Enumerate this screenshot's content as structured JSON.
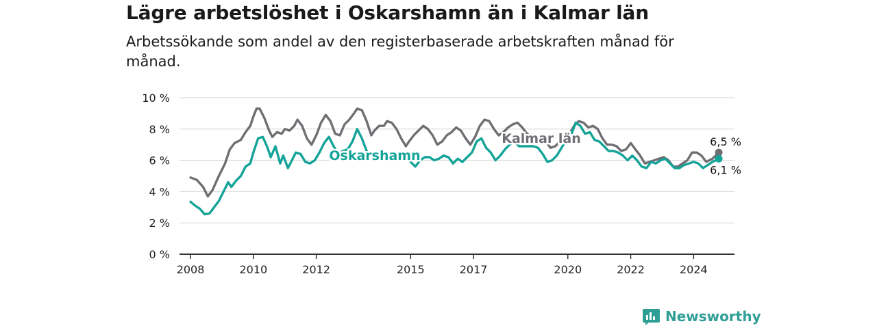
{
  "header": {
    "title": "Lägre arbetslöshet i Oskarshamn än i Kalmar län",
    "subtitle": "Arbetssökande som andel av den registerbaserade arbetskraften månad för månad."
  },
  "branding": {
    "logo_text": "Newsworthy",
    "logo_icon": "newsworthy-chart-icon"
  },
  "colors": {
    "kalmar": "#6e6e73",
    "oskarshamn": "#14a398",
    "grid": "#dddddd",
    "axis": "#333333",
    "logo": "#2f9e95"
  },
  "chart_data": {
    "type": "line",
    "title": "Lägre arbetslöshet i Oskarshamn än i Kalmar län",
    "subtitle": "Arbetssökande som andel av den registerbaserade arbetskraften månad för månad.",
    "ylim": [
      0,
      10
    ],
    "y_ticks": [
      0,
      2,
      4,
      6,
      8,
      10
    ],
    "y_tick_labels": [
      "0 %",
      "2 %",
      "4 %",
      "6 %",
      "8 %",
      "10 %"
    ],
    "x_tick_labels": [
      "2008",
      "2010",
      "2012",
      "2015",
      "2017",
      "2020",
      "2022",
      "2024"
    ],
    "grid": true,
    "legend": "inline labels",
    "series": [
      {
        "name": "Kalmar län",
        "end_label": "6,5 %",
        "points": [
          [
            2008.0,
            4.9
          ],
          [
            2008.2,
            4.75
          ],
          [
            2008.4,
            4.3
          ],
          [
            2008.55,
            3.7
          ],
          [
            2008.7,
            4.1
          ],
          [
            2008.9,
            5.0
          ],
          [
            2009.1,
            5.8
          ],
          [
            2009.25,
            6.7
          ],
          [
            2009.4,
            7.1
          ],
          [
            2009.6,
            7.3
          ],
          [
            2009.75,
            7.8
          ],
          [
            2009.9,
            8.2
          ],
          [
            2010.0,
            8.8
          ],
          [
            2010.1,
            9.3
          ],
          [
            2010.2,
            9.3
          ],
          [
            2010.35,
            8.7
          ],
          [
            2010.5,
            7.9
          ],
          [
            2010.6,
            7.5
          ],
          [
            2010.75,
            7.8
          ],
          [
            2010.9,
            7.7
          ],
          [
            2011.0,
            8.0
          ],
          [
            2011.15,
            7.9
          ],
          [
            2011.3,
            8.2
          ],
          [
            2011.4,
            8.6
          ],
          [
            2011.55,
            8.2
          ],
          [
            2011.7,
            7.4
          ],
          [
            2011.85,
            7.0
          ],
          [
            2012.0,
            7.6
          ],
          [
            2012.15,
            8.4
          ],
          [
            2012.3,
            8.9
          ],
          [
            2012.45,
            8.5
          ],
          [
            2012.6,
            7.7
          ],
          [
            2012.75,
            7.6
          ],
          [
            2012.9,
            8.3
          ],
          [
            2013.05,
            8.6
          ],
          [
            2013.2,
            9.0
          ],
          [
            2013.3,
            9.3
          ],
          [
            2013.45,
            9.2
          ],
          [
            2013.6,
            8.5
          ],
          [
            2013.75,
            7.6
          ],
          [
            2013.85,
            7.9
          ],
          [
            2014.0,
            8.2
          ],
          [
            2014.15,
            8.2
          ],
          [
            2014.25,
            8.5
          ],
          [
            2014.4,
            8.4
          ],
          [
            2014.55,
            8.0
          ],
          [
            2014.7,
            7.4
          ],
          [
            2014.85,
            6.9
          ],
          [
            2014.95,
            7.2
          ],
          [
            2015.1,
            7.6
          ],
          [
            2015.25,
            7.9
          ],
          [
            2015.4,
            8.2
          ],
          [
            2015.55,
            8.0
          ],
          [
            2015.7,
            7.6
          ],
          [
            2015.85,
            7.0
          ],
          [
            2016.0,
            7.2
          ],
          [
            2016.15,
            7.6
          ],
          [
            2016.3,
            7.8
          ],
          [
            2016.45,
            8.1
          ],
          [
            2016.6,
            7.9
          ],
          [
            2016.75,
            7.4
          ],
          [
            2016.9,
            7.0
          ],
          [
            2017.05,
            7.5
          ],
          [
            2017.2,
            8.2
          ],
          [
            2017.35,
            8.6
          ],
          [
            2017.5,
            8.5
          ],
          [
            2017.65,
            8.0
          ],
          [
            2017.8,
            7.6
          ],
          [
            2017.95,
            7.8
          ],
          [
            2018.1,
            8.1
          ],
          [
            2018.25,
            8.3
          ],
          [
            2018.4,
            8.4
          ],
          [
            2018.55,
            8.1
          ],
          [
            2018.7,
            7.7
          ],
          [
            2018.85,
            7.5
          ],
          [
            2019.0,
            7.3
          ],
          [
            2019.15,
            7.2
          ],
          [
            2019.3,
            7.2
          ],
          [
            2019.45,
            6.8
          ],
          [
            2019.6,
            6.9
          ],
          [
            2019.75,
            7.2
          ],
          [
            2019.9,
            7.4
          ],
          [
            2020.05,
            7.7
          ],
          [
            2020.2,
            8.2
          ],
          [
            2020.35,
            8.5
          ],
          [
            2020.5,
            8.4
          ],
          [
            2020.65,
            8.1
          ],
          [
            2020.8,
            8.2
          ],
          [
            2020.95,
            8.0
          ],
          [
            2021.1,
            7.4
          ],
          [
            2021.25,
            7.0
          ],
          [
            2021.4,
            7.0
          ],
          [
            2021.55,
            6.9
          ],
          [
            2021.7,
            6.6
          ],
          [
            2021.85,
            6.7
          ],
          [
            2022.0,
            7.1
          ],
          [
            2022.15,
            6.7
          ],
          [
            2022.3,
            6.3
          ],
          [
            2022.45,
            5.8
          ],
          [
            2022.6,
            5.9
          ],
          [
            2022.75,
            6.0
          ],
          [
            2022.9,
            6.1
          ],
          [
            2023.05,
            6.2
          ],
          [
            2023.2,
            6.0
          ],
          [
            2023.35,
            5.6
          ],
          [
            2023.5,
            5.6
          ],
          [
            2023.65,
            5.8
          ],
          [
            2023.8,
            6.0
          ],
          [
            2023.95,
            6.5
          ],
          [
            2024.1,
            6.5
          ],
          [
            2024.25,
            6.3
          ],
          [
            2024.4,
            5.9
          ],
          [
            2024.6,
            6.1
          ],
          [
            2024.8,
            6.5
          ]
        ]
      },
      {
        "name": "Oskarshamn",
        "end_label": "6,1 %",
        "points": [
          [
            2008.0,
            3.35
          ],
          [
            2008.15,
            3.1
          ],
          [
            2008.3,
            2.9
          ],
          [
            2008.45,
            2.55
          ],
          [
            2008.6,
            2.6
          ],
          [
            2008.75,
            3.0
          ],
          [
            2008.9,
            3.4
          ],
          [
            2009.05,
            4.0
          ],
          [
            2009.2,
            4.6
          ],
          [
            2009.3,
            4.3
          ],
          [
            2009.45,
            4.7
          ],
          [
            2009.6,
            5.0
          ],
          [
            2009.75,
            5.6
          ],
          [
            2009.9,
            5.8
          ],
          [
            2010.0,
            6.5
          ],
          [
            2010.15,
            7.4
          ],
          [
            2010.3,
            7.5
          ],
          [
            2010.45,
            6.8
          ],
          [
            2010.55,
            6.2
          ],
          [
            2010.7,
            6.9
          ],
          [
            2010.85,
            5.8
          ],
          [
            2010.95,
            6.3
          ],
          [
            2011.1,
            5.5
          ],
          [
            2011.25,
            6.1
          ],
          [
            2011.35,
            6.5
          ],
          [
            2011.5,
            6.4
          ],
          [
            2011.65,
            5.9
          ],
          [
            2011.8,
            5.8
          ],
          [
            2011.95,
            6.0
          ],
          [
            2012.1,
            6.5
          ],
          [
            2012.25,
            7.1
          ],
          [
            2012.4,
            7.5
          ],
          [
            2012.55,
            6.9
          ],
          [
            2012.7,
            6.4
          ],
          [
            2012.85,
            6.6
          ],
          [
            2013.0,
            6.7
          ],
          [
            2013.15,
            7.2
          ],
          [
            2013.3,
            8.0
          ],
          [
            2013.45,
            7.4
          ],
          [
            2013.6,
            6.6
          ],
          [
            2015.0,
            5.9
          ],
          [
            2015.15,
            5.6
          ],
          [
            2015.3,
            6.0
          ],
          [
            2015.45,
            6.2
          ],
          [
            2015.6,
            6.2
          ],
          [
            2015.75,
            6.0
          ],
          [
            2015.9,
            6.1
          ],
          [
            2016.05,
            6.3
          ],
          [
            2016.2,
            6.2
          ],
          [
            2016.35,
            5.8
          ],
          [
            2016.5,
            6.1
          ],
          [
            2016.65,
            5.9
          ],
          [
            2016.8,
            6.2
          ],
          [
            2016.95,
            6.5
          ],
          [
            2017.1,
            7.2
          ],
          [
            2017.25,
            7.4
          ],
          [
            2017.4,
            6.8
          ],
          [
            2017.55,
            6.5
          ],
          [
            2017.7,
            6.0
          ],
          [
            2017.85,
            6.3
          ],
          [
            2018.0,
            6.7
          ],
          [
            2018.15,
            7.0
          ],
          [
            2018.3,
            7.2
          ],
          [
            2018.45,
            6.9
          ],
          [
            2018.6,
            6.9
          ],
          [
            2018.75,
            6.9
          ],
          [
            2018.9,
            6.9
          ],
          [
            2019.05,
            6.8
          ],
          [
            2019.2,
            6.4
          ],
          [
            2019.35,
            5.9
          ],
          [
            2019.5,
            6.0
          ],
          [
            2019.65,
            6.3
          ],
          [
            2019.8,
            6.8
          ],
          [
            2019.95,
            7.3
          ],
          [
            2020.1,
            7.6
          ],
          [
            2020.25,
            8.4
          ],
          [
            2020.4,
            8.2
          ],
          [
            2020.55,
            7.7
          ],
          [
            2020.7,
            7.8
          ],
          [
            2020.85,
            7.3
          ],
          [
            2021.0,
            7.2
          ],
          [
            2021.15,
            6.9
          ],
          [
            2021.3,
            6.6
          ],
          [
            2021.45,
            6.6
          ],
          [
            2021.6,
            6.5
          ],
          [
            2021.75,
            6.3
          ],
          [
            2021.9,
            6.0
          ],
          [
            2022.05,
            6.3
          ],
          [
            2022.2,
            6.0
          ],
          [
            2022.35,
            5.6
          ],
          [
            2022.5,
            5.5
          ],
          [
            2022.65,
            5.9
          ],
          [
            2022.8,
            5.8
          ],
          [
            2022.95,
            6.0
          ],
          [
            2023.1,
            6.1
          ],
          [
            2023.25,
            5.8
          ],
          [
            2023.4,
            5.5
          ],
          [
            2023.55,
            5.5
          ],
          [
            2023.7,
            5.7
          ],
          [
            2023.85,
            5.8
          ],
          [
            2024.0,
            5.9
          ],
          [
            2024.15,
            5.8
          ],
          [
            2024.3,
            5.5
          ],
          [
            2024.6,
            5.9
          ],
          [
            2024.8,
            6.1
          ]
        ]
      }
    ]
  }
}
